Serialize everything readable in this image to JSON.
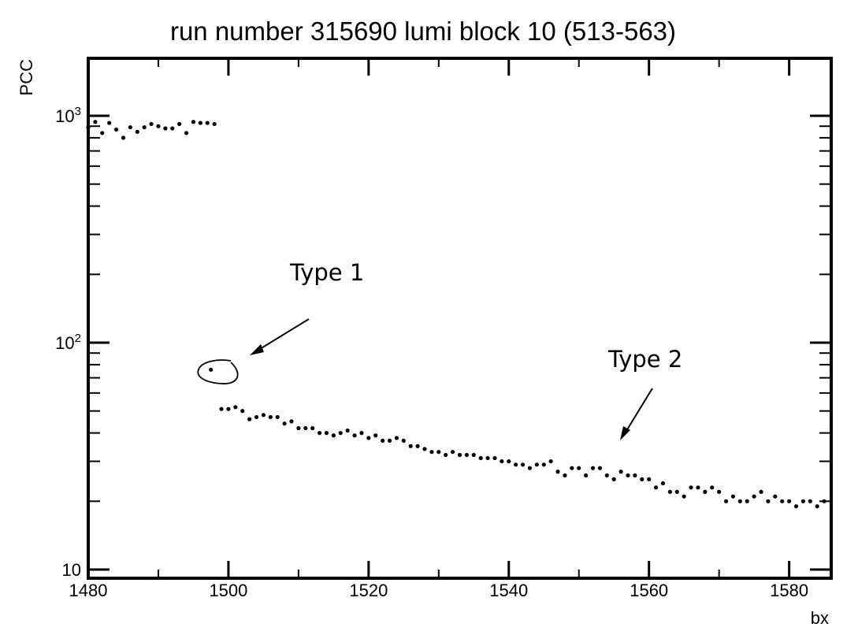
{
  "chart_data": {
    "type": "scatter",
    "title": "run number 315690 lumi block 10 (513-563)",
    "xlabel": "bx",
    "ylabel": "PCC",
    "yscale": "log",
    "xlim": [
      1480,
      1586
    ],
    "ylim": [
      10,
      1900
    ],
    "x_ticks": [
      "1480",
      "1500",
      "1520",
      "1540",
      "1560",
      "1580"
    ],
    "y_tick_base": "10",
    "y_ticks": [
      {
        "value": 10,
        "mantissa": "10",
        "exponent": ""
      },
      {
        "value": 100,
        "mantissa": "10",
        "exponent": "2"
      },
      {
        "value": 1000,
        "mantissa": "10",
        "exponent": "3"
      }
    ],
    "grid": false,
    "legend": "none",
    "color": "#000000",
    "series": [
      {
        "x": [
          1480,
          1481,
          1482,
          1483,
          1484,
          1485,
          1486,
          1487,
          1488,
          1489,
          1490,
          1491,
          1492,
          1493,
          1494,
          1495,
          1496,
          1497,
          1498
        ],
        "y": [
          890,
          940,
          840,
          930,
          870,
          800,
          890,
          850,
          890,
          920,
          900,
          880,
          880,
          920,
          840,
          940,
          930,
          930,
          920
        ]
      },
      {
        "x": [
          1497.5
        ],
        "y": [
          76
        ]
      },
      {
        "x": [
          1499,
          1500,
          1501,
          1502,
          1503,
          1504,
          1505,
          1506,
          1507,
          1508,
          1509,
          1510,
          1511,
          1512,
          1513,
          1514,
          1515,
          1516,
          1517,
          1518,
          1519,
          1520,
          1521,
          1522,
          1523,
          1524,
          1525,
          1526,
          1527,
          1528,
          1529,
          1530,
          1531,
          1532,
          1533,
          1534,
          1535,
          1536,
          1537,
          1538,
          1539,
          1540,
          1541,
          1542,
          1543,
          1544,
          1545,
          1546,
          1547,
          1548,
          1549,
          1550,
          1551,
          1552,
          1553,
          1554,
          1555,
          1556,
          1557,
          1558,
          1559,
          1560,
          1561,
          1562,
          1563,
          1564,
          1565,
          1566,
          1567,
          1568,
          1569,
          1570,
          1571,
          1572,
          1573,
          1574,
          1575,
          1576,
          1577,
          1578,
          1579,
          1580,
          1581,
          1582,
          1583,
          1584,
          1585
        ],
        "y": [
          51,
          51,
          52,
          50,
          46,
          47,
          48,
          47,
          47,
          44,
          45,
          42,
          42,
          42,
          40,
          40,
          39,
          40,
          41,
          39,
          40,
          38,
          39,
          37,
          37,
          38,
          37,
          35,
          35,
          34,
          33,
          33,
          32,
          33,
          32,
          32,
          32,
          31,
          31,
          31,
          30,
          30,
          29,
          29,
          28,
          29,
          29,
          30,
          27,
          26,
          28,
          28,
          26,
          28,
          28,
          26,
          25,
          27,
          26,
          26,
          25,
          25,
          23,
          24,
          22,
          22,
          21,
          23,
          23,
          22,
          23,
          22,
          20,
          21,
          20,
          20,
          21,
          22,
          20,
          21,
          20,
          20,
          19,
          20,
          20,
          19,
          20
        ]
      }
    ],
    "annotations": [
      {
        "text": "Type 1"
      },
      {
        "text": "Type 2"
      }
    ]
  }
}
